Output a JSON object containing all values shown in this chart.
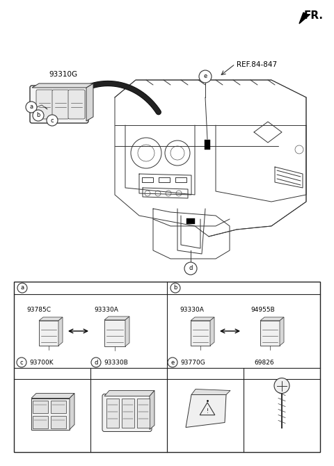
{
  "bg_color": "#ffffff",
  "fr_label": "FR.",
  "ref_label": "REF.84-847",
  "part_label_main": "93310G",
  "table_parts": {
    "a1": "93785C",
    "a2": "93330A",
    "b1": "93330A",
    "b2": "94955B",
    "c": "93700K",
    "d": "93330B",
    "e": "93770G",
    "f": "69826"
  },
  "lc": "#333333",
  "lw": 0.7
}
